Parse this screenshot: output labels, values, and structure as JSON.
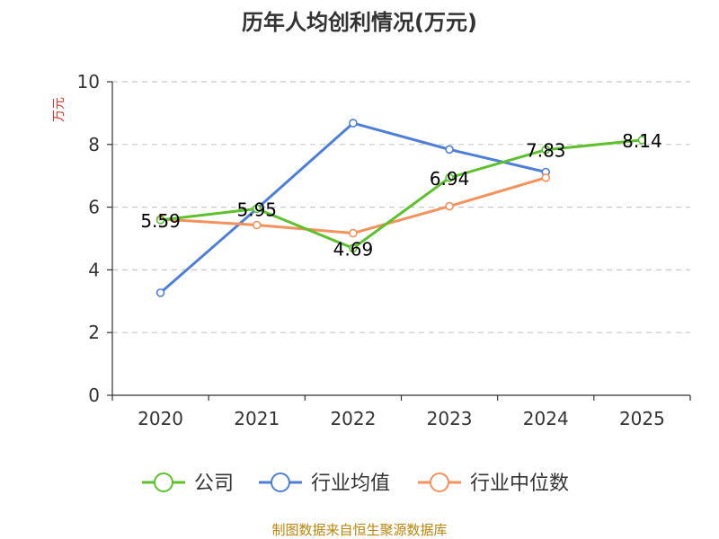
{
  "chart_data": {
    "type": "line",
    "title": "历年人均创利情况(万元)",
    "ylabel": "万元",
    "xlabel": "",
    "categories": [
      "2020",
      "2021",
      "2022",
      "2023",
      "2024",
      "2025"
    ],
    "ylim": [
      0,
      10
    ],
    "yticks": [
      "0",
      "2",
      "4",
      "6",
      "8",
      "10"
    ],
    "grid": "horizontal-dashed",
    "legend_position": "bottom",
    "series": [
      {
        "name": "公司",
        "color": "#5cc12c",
        "values": [
          5.59,
          5.95,
          4.69,
          6.94,
          7.83,
          8.14
        ],
        "labels": [
          "5.59",
          "5.95",
          "4.69",
          "6.94",
          "7.83",
          "8.14"
        ]
      },
      {
        "name": "行业均值",
        "color": "#4e7fd8",
        "values": [
          3.27,
          5.95,
          8.68,
          7.84,
          7.12,
          null
        ]
      },
      {
        "name": "行业中位数",
        "color": "#f5915a",
        "values": [
          5.62,
          5.43,
          5.17,
          6.03,
          6.94,
          null
        ]
      }
    ]
  },
  "source": "制图数据来自恒生聚源数据库"
}
